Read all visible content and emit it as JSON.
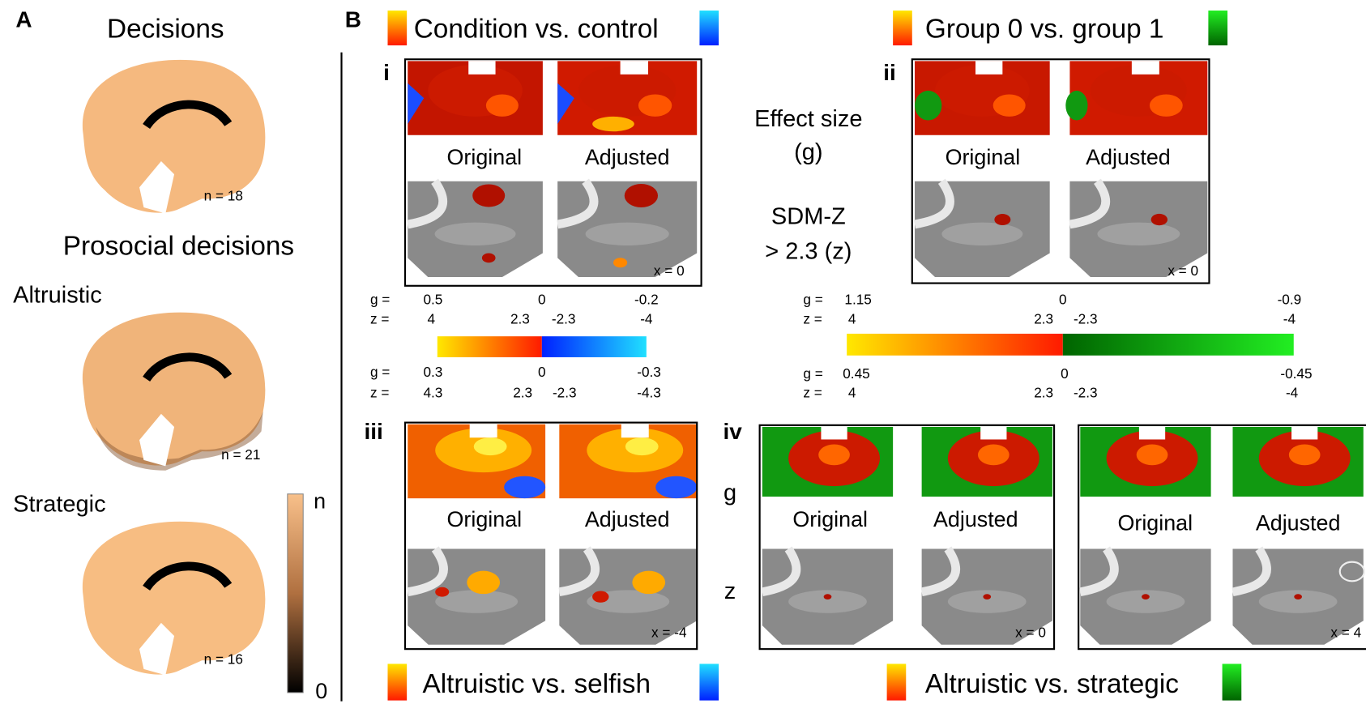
{
  "panel_a": {
    "label": "A",
    "title": "Decisions",
    "n_decisions": "n = 18",
    "subtitle": "Prosocial decisions",
    "altruistic": "Altruistic",
    "n_altruistic": "n = 21",
    "strategic": "Strategic",
    "n_strategic": "n = 16",
    "colorbar": {
      "top": "n",
      "bottom": "0"
    }
  },
  "panel_b": {
    "label": "B",
    "legend_top_left": "Condition vs. control",
    "legend_top_right": "Group 0 vs. group 1",
    "legend_bottom_left": "Altruistic vs. selfish",
    "legend_bottom_right": "Altruistic vs. strategic",
    "effect_size": [
      "Effect size",
      "(g)"
    ],
    "sdm_z": [
      "SDM-Z",
      "> 2.3 (z)"
    ],
    "panels": [
      {
        "label": "i",
        "original": "Original",
        "adjusted": "Adjusted",
        "coord": "x = 0"
      },
      {
        "label": "ii",
        "original": "Original",
        "adjusted": "Adjusted",
        "coord": "x = 0"
      },
      {
        "label": "iii",
        "original": "Original",
        "adjusted": "Adjusted",
        "coord": "x = -4"
      },
      {
        "label": "iv",
        "rows": [
          "g",
          "z"
        ],
        "original": "Original",
        "adjusted": "Adjusted",
        "coord": "x = 0",
        "original_2": "Original",
        "adjusted_2": "Adjusted",
        "coord_2": "x = 4"
      }
    ],
    "scales": {
      "left_top": {
        "g": "g =",
        "z": "z =",
        "g_values": [
          0.5,
          0,
          -0.2
        ],
        "z_values": [
          4,
          2.3,
          -2.3,
          -4
        ]
      },
      "left_bottom": {
        "g": "g =",
        "z": "z =",
        "g_values": [
          0.3,
          0,
          -0.3
        ],
        "z_values": [
          4.3,
          2.3,
          -2.3,
          -4.3
        ]
      },
      "right_top": {
        "g": "g =",
        "z": "z =",
        "g_values": [
          1.15,
          0,
          -0.9
        ],
        "z_values": [
          4,
          2.3,
          -2.3,
          -4
        ]
      },
      "right_bottom": {
        "g": "g =",
        "z": "z =",
        "g_values": [
          0.45,
          0,
          -0.45
        ],
        "z_values": [
          4,
          2.3,
          -2.3,
          -4
        ]
      }
    }
  }
}
